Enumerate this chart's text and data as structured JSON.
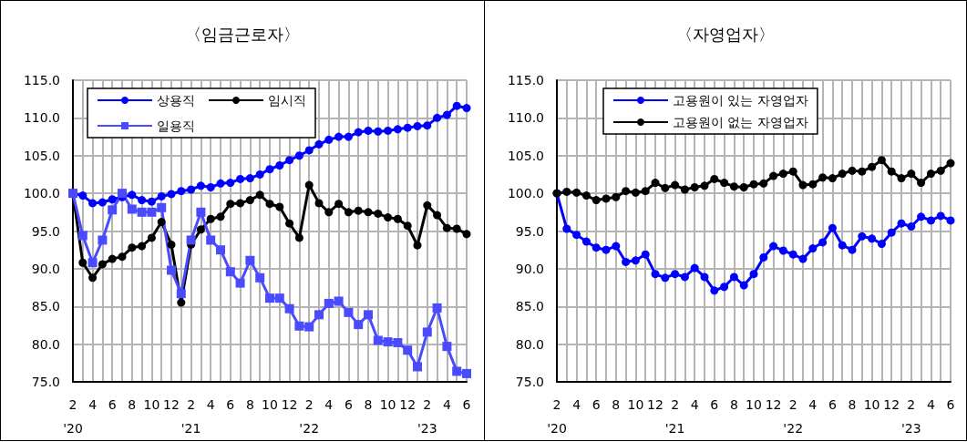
{
  "chart_data": [
    {
      "type": "line",
      "title": "〈임금근로자〉",
      "categories": [
        "2\n'20",
        null,
        "4",
        null,
        "6",
        null,
        "8",
        null,
        "10",
        null,
        "12",
        null,
        "2\n'21",
        null,
        "4",
        null,
        "6",
        null,
        "8",
        null,
        "10",
        null,
        "12",
        null,
        "2\n'22",
        null,
        "4",
        null,
        "6",
        null,
        "8",
        null,
        "10",
        null,
        "12",
        null,
        "2\n'23",
        null,
        "4",
        null,
        "6"
      ],
      "ylim": [
        75,
        115
      ],
      "yticks": [
        {
          "value": 75,
          "label": "75.0"
        },
        {
          "value": 80,
          "label": "80.0"
        },
        {
          "value": 85,
          "label": "85.0"
        },
        {
          "value": 90,
          "label": "90.0"
        },
        {
          "value": 95,
          "label": "95.0"
        },
        {
          "value": 100,
          "label": "100.0"
        },
        {
          "value": 105,
          "label": "105.0"
        },
        {
          "value": 110,
          "label": "110.0"
        },
        {
          "value": 115,
          "label": "115.0"
        }
      ],
      "grid": true,
      "legend": "top left",
      "line_style": "solid",
      "series": [
        {
          "name": "상용직",
          "color": "#0000ff",
          "marker": "circle",
          "values": [
            100,
            99.7,
            98.7,
            98.8,
            99.2,
            99.5,
            99.8,
            99.1,
            98.9,
            99.6,
            99.9,
            100.3,
            100.5,
            101.0,
            100.8,
            101.3,
            101.4,
            101.9,
            102.0,
            102.5,
            103.2,
            103.7,
            104.4,
            105.0,
            105.7,
            106.5,
            107.1,
            107.5,
            107.5,
            108.1,
            108.3,
            108.2,
            108.3,
            108.5,
            108.7,
            108.9,
            109.0,
            110.0,
            110.4,
            111.6,
            111.3
          ]
        },
        {
          "name": "임시직",
          "color": "#000000",
          "marker": "circle",
          "values": [
            100,
            90.8,
            88.8,
            90.6,
            91.3,
            91.6,
            92.8,
            93.0,
            94.1,
            96.2,
            93.2,
            85.5,
            93.2,
            95.2,
            96.6,
            96.9,
            98.6,
            98.7,
            99.1,
            99.8,
            98.6,
            98.2,
            96.0,
            94.1,
            101.1,
            98.7,
            97.5,
            98.6,
            97.5,
            97.7,
            97.5,
            97.3,
            96.8,
            96.6,
            95.7,
            93.1,
            98.4,
            97.1,
            95.4,
            95.3,
            94.6
          ]
        },
        {
          "name": "일용직",
          "color": "#4a4aff",
          "marker": "square",
          "values": [
            100,
            94.4,
            90.8,
            93.8,
            97.8,
            100.0,
            97.9,
            97.5,
            97.5,
            98.1,
            89.8,
            86.7,
            93.8,
            97.5,
            93.8,
            92.5,
            89.6,
            88.1,
            91.1,
            88.8,
            86.1,
            86.1,
            84.7,
            82.4,
            82.3,
            83.9,
            85.4,
            85.7,
            84.2,
            82.6,
            83.9,
            80.5,
            80.3,
            80.2,
            79.2,
            77.0,
            81.6,
            84.8,
            79.7,
            76.4,
            76.1
          ]
        }
      ]
    },
    {
      "type": "line",
      "title": "〈자영업자〉",
      "categories": [
        "2\n'20",
        null,
        "4",
        null,
        "6",
        null,
        "8",
        null,
        "10",
        null,
        "12",
        null,
        "2\n'21",
        null,
        "4",
        null,
        "6",
        null,
        "8",
        null,
        "10",
        null,
        "12",
        null,
        "2\n'22",
        null,
        "4",
        null,
        "6",
        null,
        "8",
        null,
        "10",
        null,
        "12",
        null,
        "2\n'23",
        null,
        "4",
        null,
        "6"
      ],
      "ylim": [
        75,
        115
      ],
      "yticks": [
        {
          "value": 75,
          "label": "75.0"
        },
        {
          "value": 80,
          "label": "80.0"
        },
        {
          "value": 85,
          "label": "85.0"
        },
        {
          "value": 90,
          "label": "90.0"
        },
        {
          "value": 95,
          "label": "95.0"
        },
        {
          "value": 100,
          "label": "100.0"
        },
        {
          "value": 105,
          "label": "105.0"
        },
        {
          "value": 110,
          "label": "110.0"
        },
        {
          "value": 115,
          "label": "115.0"
        }
      ],
      "grid": true,
      "legend": "top",
      "line_style": "solid",
      "series": [
        {
          "name": "고용원이 있는 자영업자",
          "color": "#0000ff",
          "marker": "circle",
          "values": [
            100,
            95.3,
            94.5,
            93.6,
            92.8,
            92.5,
            93.0,
            90.9,
            91.1,
            91.9,
            89.3,
            88.8,
            89.3,
            88.9,
            90.1,
            88.9,
            87.1,
            87.6,
            88.9,
            87.8,
            89.3,
            91.5,
            93.0,
            92.4,
            91.9,
            91.3,
            92.7,
            93.5,
            95.4,
            93.1,
            92.5,
            94.3,
            94.0,
            93.3,
            94.8,
            96.0,
            95.6,
            96.9,
            96.4,
            97.0,
            96.4
          ]
        },
        {
          "name": "고용원이 없는 자영업자",
          "color": "#000000",
          "marker": "circle",
          "values": [
            100,
            100.2,
            100.1,
            99.7,
            99.1,
            99.3,
            99.5,
            100.3,
            100.1,
            100.3,
            101.4,
            100.7,
            101.1,
            100.5,
            100.8,
            101.0,
            101.9,
            101.4,
            100.9,
            100.8,
            101.2,
            101.3,
            102.3,
            102.6,
            102.9,
            101.1,
            101.2,
            102.1,
            102.0,
            102.6,
            103.0,
            102.9,
            103.5,
            104.4,
            102.9,
            102.0,
            102.6,
            101.4,
            102.6,
            103.0,
            104.0
          ]
        }
      ]
    }
  ]
}
